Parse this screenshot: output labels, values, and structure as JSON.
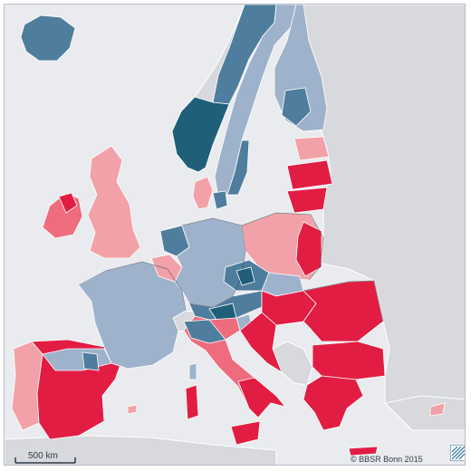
{
  "map": {
    "scale_bar_label": "500 km",
    "credit": "© BBSR Bonn 2015",
    "logo_alt": "BBSR logo"
  },
  "palette": {
    "ocean": "#e9ebee",
    "non_eu_land": "#d7d9dd",
    "borders": "#ffffff",
    "category_dark_blue": "#1f5f7a",
    "category_mid_blue": "#4f7d9d",
    "category_light_blue": "#9fb2cc",
    "category_light_red": "#f2a1a8",
    "category_mid_red": "#ee6c7e",
    "category_dark_red": "#e21d43"
  }
}
